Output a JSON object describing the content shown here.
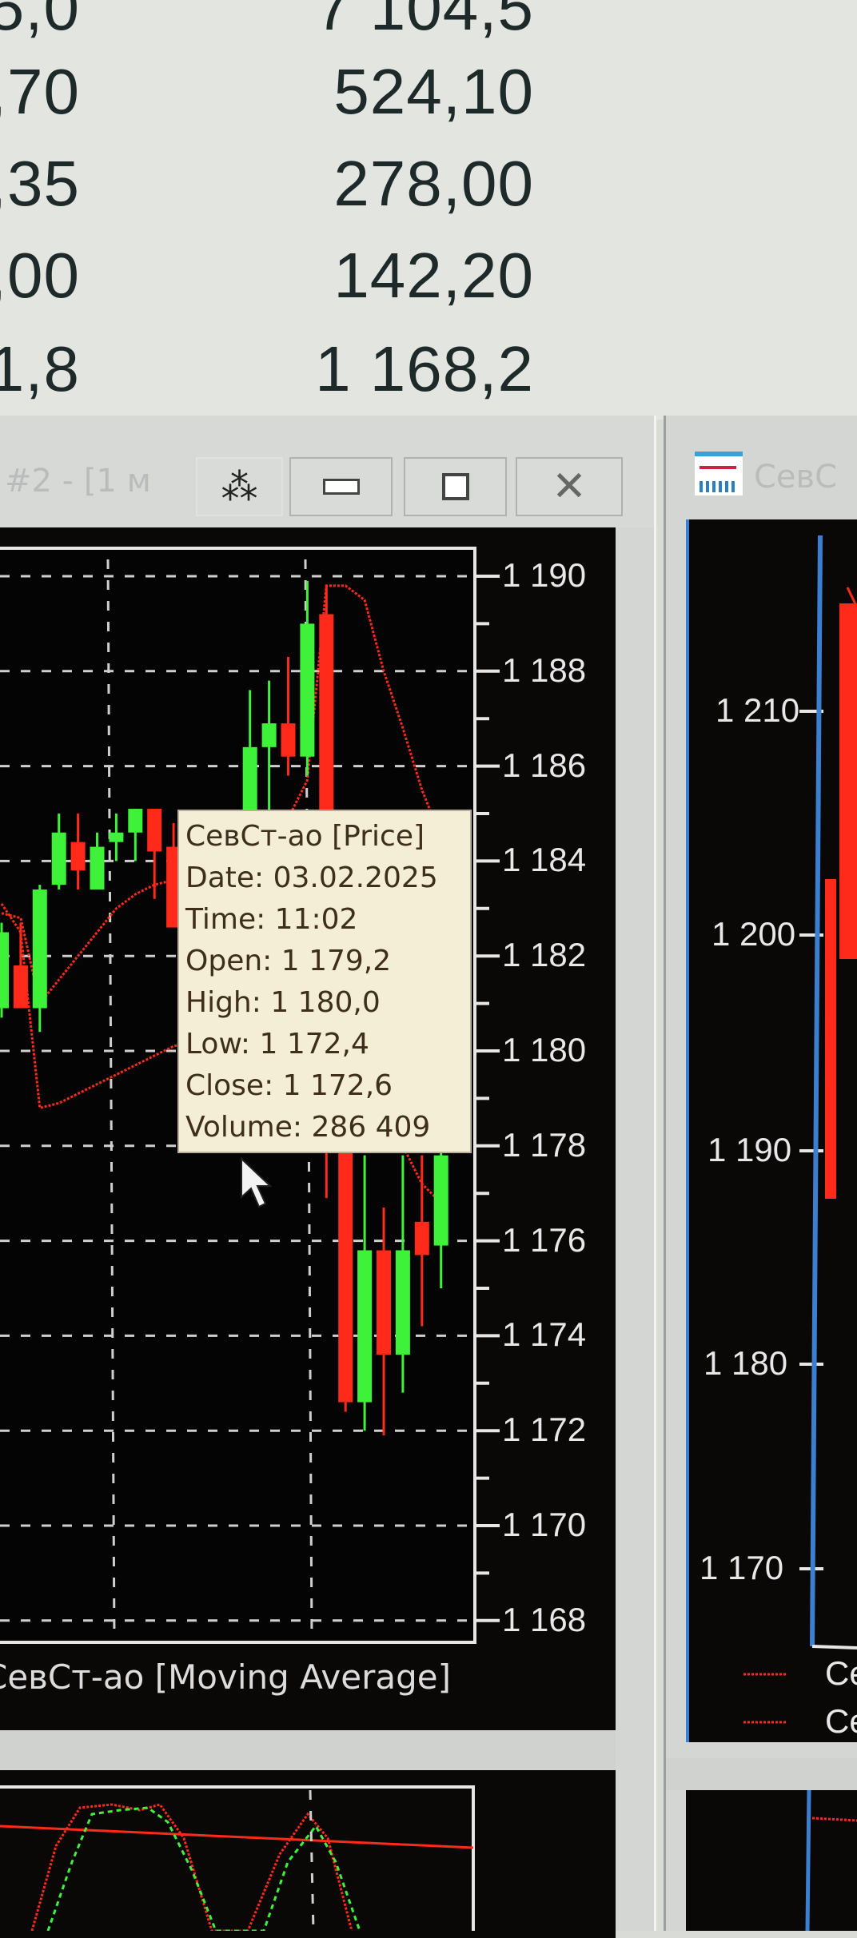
{
  "top_table": {
    "rows": [
      {
        "left": "5,0",
        "right": "7 104,5"
      },
      {
        "left": ",70",
        "right": "524,10"
      },
      {
        "left": ",35",
        "right": "278,00"
      },
      {
        "left": ",00",
        "right": "142,20"
      },
      {
        "left": "1,8",
        "right": "1 168,2"
      }
    ]
  },
  "left_window": {
    "title": "#2 - [1 м",
    "buttons": {
      "tile": "tile-icon",
      "minimize": "minimize-icon",
      "maximize": "maximize-icon",
      "close": "close-icon"
    },
    "indicator_caption": "СевСт-ао [Moving Average]"
  },
  "right_window": {
    "title": "СевС",
    "icon": "chart-icon",
    "y_ticks": [
      "1 210",
      "1 200",
      "1 190",
      "1 180",
      "1 170"
    ],
    "legend": [
      "Се",
      "Се"
    ]
  },
  "tooltip": {
    "title": "СевСт-ао [Price]",
    "date": "Date: 03.02.2025",
    "time": "Time: 11:02",
    "open": "Open:  1 179,2",
    "high": "High:   1 180,0",
    "low": "Low:     1 172,4",
    "close": "Close: 1 172,6",
    "volume": "Volume: 286 409"
  },
  "colors": {
    "up": "#3ef23a",
    "down": "#ff2a1a",
    "ma": "#ff2a1a",
    "background": "#050404",
    "tooltip_bg": "#f4eed6"
  },
  "chart_data": {
    "type": "candlestick",
    "ylim": [
      1167.5,
      1190.5
    ],
    "y_ticks": [
      "1 190",
      "1 188",
      "1 186",
      "1 184",
      "1 182",
      "1 180",
      "1 178",
      "1 176",
      "1 174",
      "1 172",
      "1 170",
      "1 168"
    ],
    "y_tick_values": [
      1190,
      1188,
      1186,
      1184,
      1182,
      1180,
      1178,
      1176,
      1174,
      1172,
      1170,
      1168
    ],
    "grid": true,
    "candles": [
      {
        "o": 1180.9,
        "h": 1182.7,
        "l": 1180.7,
        "c": 1182.5
      },
      {
        "o": 1181.8,
        "h": 1182.7,
        "l": 1180.9,
        "c": 1180.9
      },
      {
        "o": 1180.9,
        "h": 1183.5,
        "l": 1180.4,
        "c": 1183.4
      },
      {
        "o": 1183.5,
        "h": 1185.0,
        "l": 1183.4,
        "c": 1184.6
      },
      {
        "o": 1184.4,
        "h": 1185.0,
        "l": 1183.4,
        "c": 1183.8
      },
      {
        "o": 1183.4,
        "h": 1184.6,
        "l": 1183.4,
        "c": 1184.3
      },
      {
        "o": 1184.4,
        "h": 1185.0,
        "l": 1184.0,
        "c": 1184.6
      },
      {
        "o": 1184.6,
        "h": 1185.1,
        "l": 1184.0,
        "c": 1185.1
      },
      {
        "o": 1185.1,
        "h": 1185.1,
        "l": 1183.2,
        "c": 1184.2
      },
      {
        "o": 1184.3,
        "h": 1184.8,
        "l": 1182.6,
        "c": 1182.6
      },
      {
        "o": 1183.0,
        "h": 1183.3,
        "l": 1181.8,
        "c": 1182.6
      },
      {
        "o": 1182.1,
        "h": 1183.3,
        "l": 1181.6,
        "c": 1183.0
      },
      {
        "o": 1183.4,
        "h": 1183.8,
        "l": 1181.2,
        "c": 1183.8
      },
      {
        "o": 1182.7,
        "h": 1187.6,
        "l": 1182.7,
        "c": 1186.4
      },
      {
        "o": 1186.4,
        "h": 1187.8,
        "l": 1183.2,
        "c": 1186.9
      },
      {
        "o": 1186.9,
        "h": 1188.3,
        "l": 1185.8,
        "c": 1186.2
      },
      {
        "o": 1186.2,
        "h": 1189.9,
        "l": 1185.8,
        "c": 1189.0
      },
      {
        "o": 1189.2,
        "h": 1189.8,
        "l": 1176.9,
        "c": 1178.6
      },
      {
        "o": 1179.2,
        "h": 1180.0,
        "l": 1172.4,
        "c": 1172.6
      },
      {
        "o": 1172.6,
        "h": 1177.8,
        "l": 1172.0,
        "c": 1175.8
      },
      {
        "o": 1175.8,
        "h": 1176.7,
        "l": 1171.9,
        "c": 1173.6
      },
      {
        "o": 1173.6,
        "h": 1177.8,
        "l": 1172.8,
        "c": 1175.8
      },
      {
        "o": 1176.4,
        "h": 1177.8,
        "l": 1174.2,
        "c": 1175.7
      },
      {
        "o": 1175.9,
        "h": 1178.5,
        "l": 1175.0,
        "c": 1177.8
      }
    ],
    "ma_series": [
      {
        "values": [
          1182.9,
          1182.8,
          1181.0,
          1181.5,
          1182.0,
          1182.5,
          1183.0,
          1183.3,
          1183.5,
          1183.6,
          1183.3,
          1183.1,
          1183.2,
          1183.6,
          1184.2,
          1184.9,
          1185.7,
          1189.8,
          1189.8,
          1189.5,
          1188.0,
          1186.8,
          1185.5,
          1184.5
        ]
      },
      {
        "values": [
          1183.1,
          1182.5,
          1178.8,
          1178.9,
          1179.1,
          1179.3,
          1179.5,
          1179.7,
          1179.9,
          1180.1,
          1180.2,
          1180.4,
          1180.5,
          1180.7,
          1181.0,
          1181.4,
          1182.2,
          1185.5,
          1183.0,
          1180.5,
          1179.0,
          1178.0,
          1177.2,
          1176.8
        ]
      }
    ]
  }
}
